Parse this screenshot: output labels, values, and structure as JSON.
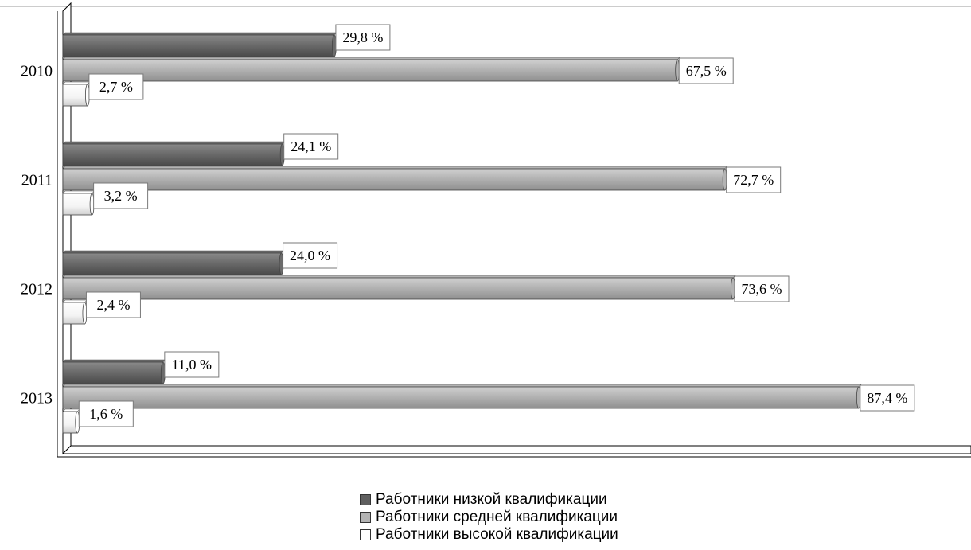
{
  "chart_data": {
    "type": "bar",
    "orientation": "horizontal",
    "categories": [
      "2010",
      "2011",
      "2012",
      "2013"
    ],
    "series": [
      {
        "name": "Работники низкой квалификации",
        "values": [
          29.8,
          24.1,
          24.0,
          11.0
        ],
        "labels": [
          "29,8 %",
          "24,1 %",
          "24,0 %",
          "11,0 %"
        ],
        "color": "#6b6b6b"
      },
      {
        "name": "Работники средней квалификации",
        "values": [
          67.5,
          72.7,
          73.6,
          87.4
        ],
        "labels": [
          "67,5 %",
          "72,7 %",
          "73,6 %",
          "87,4 %"
        ],
        "color": "#b3b3b3"
      },
      {
        "name": "Работники высокой квалификации",
        "values": [
          2.7,
          3.2,
          2.4,
          1.6
        ],
        "labels": [
          "2,7 %",
          "3,2 %",
          "2,4 %",
          "1,6 %"
        ],
        "color": "#ffffff"
      }
    ],
    "xlim": [
      0,
      100
    ],
    "grid": false,
    "legend_position": "bottom-center"
  }
}
